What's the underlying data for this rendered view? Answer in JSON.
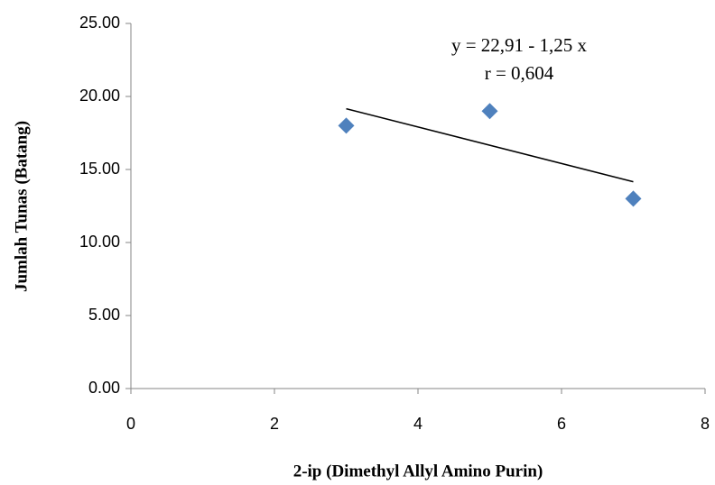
{
  "chart_data": {
    "type": "scatter",
    "x_label": "2-ip (Dimethyl Allyl Amino Purin)",
    "y_label": "Jumlah Tunas (Batang)",
    "series": [
      {
        "x": [
          3,
          5,
          7
        ],
        "values": [
          18,
          19,
          13
        ],
        "color": "#4f81bd"
      }
    ],
    "trendline": {
      "equation": "y = 22,91 - 1,25 x",
      "r_label": "r = 0,604",
      "intercept": 22.91,
      "slope": -1.25,
      "color": "#000000"
    },
    "xlim": [
      0,
      8
    ],
    "xticks": [
      0,
      2,
      4,
      6,
      8
    ],
    "ylim": [
      0,
      25
    ],
    "yticks": [
      {
        "value": 0,
        "label": "0.00"
      },
      {
        "value": 5,
        "label": "5.00"
      },
      {
        "value": 10,
        "label": "10.00"
      },
      {
        "value": 15,
        "label": "15.00"
      },
      {
        "value": 20,
        "label": "20.00"
      },
      {
        "value": 25,
        "label": "25.00"
      }
    ],
    "grid": false
  }
}
